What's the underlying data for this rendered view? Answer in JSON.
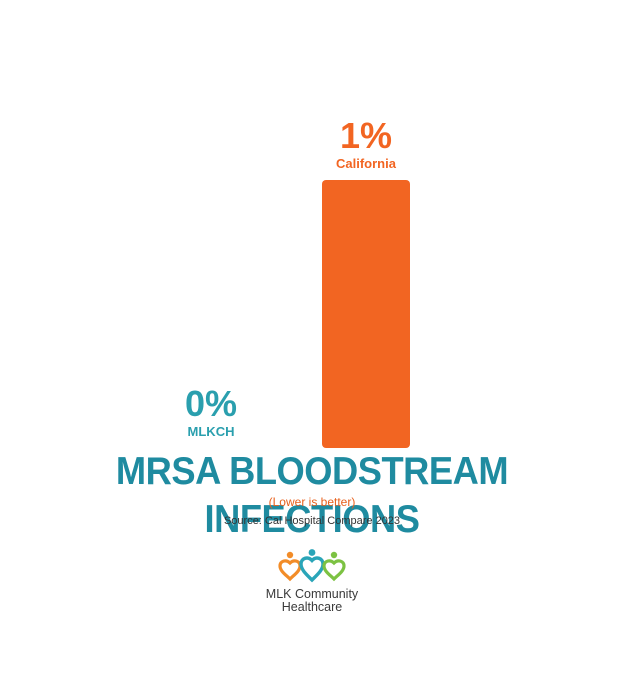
{
  "chart_data": {
    "type": "bar",
    "categories": [
      "MLKCH",
      "California"
    ],
    "values": [
      0,
      1
    ],
    "value_labels": [
      "0%",
      "1%"
    ],
    "title": "MRSA BLOODSTREAM INFECTIONS",
    "subtitle": "(Lower is better)",
    "source": "Source: Cal Hospital Compare 2023",
    "ylim": [
      0,
      1
    ],
    "grid": false,
    "colors": [
      "#2a9fae",
      "#f26522"
    ]
  },
  "colors": {
    "title": "#1f8ba0",
    "subtitle": "#e8601c",
    "logo_orange": "#f28c28",
    "logo_teal": "#2aa5b8",
    "logo_green": "#7cc242"
  },
  "logo": {
    "icon": "people-hearts-icon",
    "line1": "MLK Community",
    "line2": "Healthcare"
  }
}
